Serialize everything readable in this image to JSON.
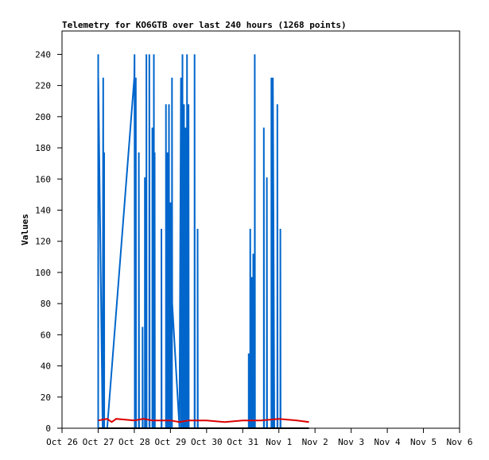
{
  "chart_data": {
    "type": "line",
    "title": "Telemetry for KO6GTB over last 240 hours (1268 points)",
    "xlabel": "",
    "ylabel": "Values",
    "x_ticks": [
      "Oct 26",
      "Oct 27",
      "Oct 28",
      "Oct 29",
      "Oct 30",
      "Oct 31",
      "Nov 1",
      "Nov 2",
      "Nov 3",
      "Nov 4",
      "Nov 5",
      "Nov 6"
    ],
    "y_ticks": [
      "0",
      "20",
      "40",
      "60",
      "80",
      "100",
      "120",
      "140",
      "160",
      "180",
      "200",
      "220",
      "240"
    ],
    "xlim": [
      "2023-10-26T00:00",
      "2023-11-06T00:00"
    ],
    "ylim": [
      0,
      255
    ],
    "grid": false,
    "series": [
      {
        "color": "#0066cc",
        "points": [
          [
            "2023-10-27T00:00",
            0
          ],
          [
            "2023-10-27T00:00",
            240
          ],
          [
            "2023-10-27T00:02",
            0
          ],
          [
            "2023-10-27T00:04",
            225
          ],
          [
            "2023-10-27T03:00",
            0
          ],
          [
            "2023-10-27T03:20",
            225
          ],
          [
            "2023-10-27T03:30",
            0
          ],
          [
            "2023-10-27T04:00",
            0
          ],
          [
            "2023-10-27T04:00",
            177
          ],
          [
            "2023-10-27T04:02",
            0
          ],
          [
            "2023-10-27T06:00",
            0
          ],
          [
            "2023-10-28T00:00",
            225
          ],
          [
            "2023-10-28T00:10",
            240
          ],
          [
            "2023-10-28T00:20",
            0
          ],
          [
            "2023-10-28T01:00",
            0
          ],
          [
            "2023-10-28T01:00",
            225
          ],
          [
            "2023-10-28T01:10",
            0
          ],
          [
            "2023-10-28T03:00",
            0
          ],
          [
            "2023-10-28T03:00",
            177
          ],
          [
            "2023-10-28T03:10",
            0
          ],
          [
            "2023-10-28T05:30",
            0
          ],
          [
            "2023-10-28T05:30",
            65
          ],
          [
            "2023-10-28T05:40",
            0
          ],
          [
            "2023-10-28T07:00",
            0
          ],
          [
            "2023-10-28T07:00",
            161
          ],
          [
            "2023-10-28T07:10",
            0
          ],
          [
            "2023-10-28T08:00",
            0
          ],
          [
            "2023-10-28T08:00",
            240
          ],
          [
            "2023-10-28T08:10",
            0
          ],
          [
            "2023-10-28T10:00",
            0
          ],
          [
            "2023-10-28T10:00",
            240
          ],
          [
            "2023-10-28T10:10",
            0
          ],
          [
            "2023-10-28T12:00",
            0
          ],
          [
            "2023-10-28T12:00",
            193
          ],
          [
            "2023-10-28T12:10",
            0
          ],
          [
            "2023-10-28T13:00",
            0
          ],
          [
            "2023-10-28T13:00",
            240
          ],
          [
            "2023-10-28T13:10",
            0
          ],
          [
            "2023-10-28T13:30",
            0
          ],
          [
            "2023-10-28T13:30",
            177
          ],
          [
            "2023-10-28T13:40",
            0
          ],
          [
            "2023-10-28T18:00",
            0
          ],
          [
            "2023-10-28T18:00",
            128
          ],
          [
            "2023-10-28T18:10",
            0
          ],
          [
            "2023-10-28T21:00",
            0
          ],
          [
            "2023-10-28T21:00",
            208
          ],
          [
            "2023-10-28T21:10",
            0
          ],
          [
            "2023-10-28T22:00",
            0
          ],
          [
            "2023-10-28T22:00",
            177
          ],
          [
            "2023-10-28T22:10",
            0
          ],
          [
            "2023-10-28T23:00",
            0
          ],
          [
            "2023-10-28T23:00",
            208
          ],
          [
            "2023-10-28T23:10",
            0
          ],
          [
            "2023-10-29T00:00",
            0
          ],
          [
            "2023-10-29T00:00",
            145
          ],
          [
            "2023-10-29T00:10",
            0
          ],
          [
            "2023-10-29T01:00",
            0
          ],
          [
            "2023-10-29T01:00",
            225
          ],
          [
            "2023-10-29T01:10",
            80
          ],
          [
            "2023-10-29T06:00",
            0
          ],
          [
            "2023-10-29T07:00",
            225
          ],
          [
            "2023-10-29T07:10",
            0
          ],
          [
            "2023-10-29T08:00",
            0
          ],
          [
            "2023-10-29T08:00",
            240
          ],
          [
            "2023-10-29T08:10",
            0
          ],
          [
            "2023-10-29T09:00",
            0
          ],
          [
            "2023-10-29T09:00",
            208
          ],
          [
            "2023-10-29T09:10",
            0
          ],
          [
            "2023-10-29T10:00",
            0
          ],
          [
            "2023-10-29T10:00",
            193
          ],
          [
            "2023-10-29T10:10",
            0
          ],
          [
            "2023-10-29T11:00",
            0
          ],
          [
            "2023-10-29T11:00",
            240
          ],
          [
            "2023-10-29T11:10",
            0
          ],
          [
            "2023-10-29T12:00",
            0
          ],
          [
            "2023-10-29T12:00",
            208
          ],
          [
            "2023-10-29T12:10",
            0
          ],
          [
            "2023-10-29T16:00",
            0
          ],
          [
            "2023-10-29T16:00",
            240
          ],
          [
            "2023-10-29T16:10",
            0
          ],
          [
            "2023-10-29T18:00",
            0
          ],
          [
            "2023-10-29T18:00",
            128
          ],
          [
            "2023-10-29T18:10",
            0
          ],
          [
            "2023-10-31T04:00",
            0
          ],
          [
            "2023-10-31T04:00",
            48
          ],
          [
            "2023-10-31T04:10",
            0
          ],
          [
            "2023-10-31T05:00",
            0
          ],
          [
            "2023-10-31T05:00",
            128
          ],
          [
            "2023-10-31T05:10",
            0
          ],
          [
            "2023-10-31T06:00",
            0
          ],
          [
            "2023-10-31T06:00",
            97
          ],
          [
            "2023-10-31T06:10",
            0
          ],
          [
            "2023-10-31T07:00",
            0
          ],
          [
            "2023-10-31T07:00",
            112
          ],
          [
            "2023-10-31T07:10",
            0
          ],
          [
            "2023-10-31T08:00",
            0
          ],
          [
            "2023-10-31T08:00",
            240
          ],
          [
            "2023-10-31T08:10",
            0
          ],
          [
            "2023-10-31T14:00",
            0
          ],
          [
            "2023-10-31T14:00",
            193
          ],
          [
            "2023-10-31T14:10",
            0
          ],
          [
            "2023-10-31T16:00",
            0
          ],
          [
            "2023-10-31T16:00",
            161
          ],
          [
            "2023-10-31T16:10",
            0
          ],
          [
            "2023-10-31T19:00",
            0
          ],
          [
            "2023-10-31T19:00",
            225
          ],
          [
            "2023-10-31T19:10",
            0
          ],
          [
            "2023-10-31T20:00",
            0
          ],
          [
            "2023-10-31T20:00",
            225
          ],
          [
            "2023-10-31T21:00",
            0
          ],
          [
            "2023-10-31T23:00",
            0
          ],
          [
            "2023-10-31T23:00",
            208
          ],
          [
            "2023-10-31T23:10",
            0
          ],
          [
            "2023-11-01T01:00",
            0
          ],
          [
            "2023-11-01T01:00",
            128
          ],
          [
            "2023-11-01T01:10",
            0
          ]
        ]
      },
      {
        "color": "#dd0000",
        "points": [
          [
            "2023-10-27T00:00",
            5
          ],
          [
            "2023-10-27T06:00",
            6
          ],
          [
            "2023-10-27T09:00",
            4
          ],
          [
            "2023-10-27T12:00",
            6
          ],
          [
            "2023-10-28T00:00",
            5
          ],
          [
            "2023-10-28T06:00",
            6
          ],
          [
            "2023-10-28T12:00",
            5
          ],
          [
            "2023-10-29T00:00",
            5
          ],
          [
            "2023-10-29T06:00",
            4
          ],
          [
            "2023-10-29T12:00",
            5
          ],
          [
            "2023-10-30T00:00",
            5
          ],
          [
            "2023-10-30T12:00",
            4
          ],
          [
            "2023-10-31T00:00",
            5
          ],
          [
            "2023-10-31T12:00",
            5
          ],
          [
            "2023-11-01T00:00",
            6
          ],
          [
            "2023-11-01T12:00",
            5
          ],
          [
            "2023-11-01T20:00",
            4
          ]
        ]
      },
      {
        "color": "#000000",
        "points": [
          [
            "2023-10-27T00:00",
            0
          ],
          [
            "2023-11-01T20:00",
            0
          ]
        ]
      }
    ]
  }
}
